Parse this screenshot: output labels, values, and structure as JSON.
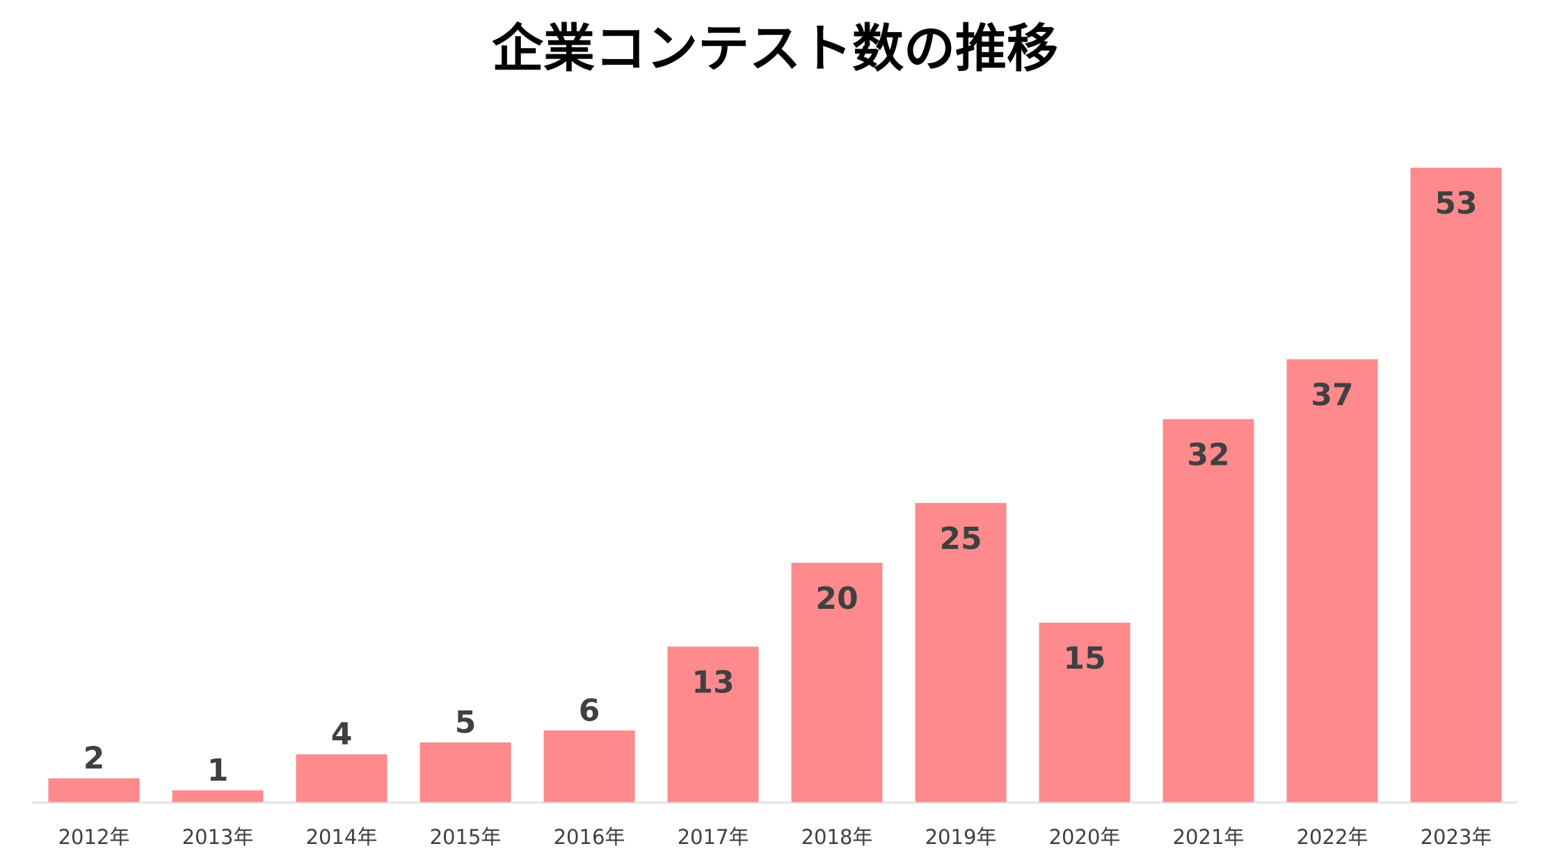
{
  "chart_data": {
    "type": "bar",
    "title": "企業コンテスト数の推移",
    "xlabel": "",
    "ylabel": "",
    "categories": [
      "2012年",
      "2013年",
      "2014年",
      "2015年",
      "2016年",
      "2017年",
      "2018年",
      "2019年",
      "2020年",
      "2021年",
      "2022年",
      "2023年"
    ],
    "values": [
      2,
      1,
      4,
      5,
      6,
      13,
      20,
      25,
      15,
      32,
      37,
      53
    ],
    "ylim": [
      0,
      53
    ],
    "grid": false,
    "legend": "none",
    "colors": {
      "bar": "#FF8A8D",
      "axis": "#D9D9D9",
      "label": "#404040",
      "title": "#000000"
    }
  }
}
